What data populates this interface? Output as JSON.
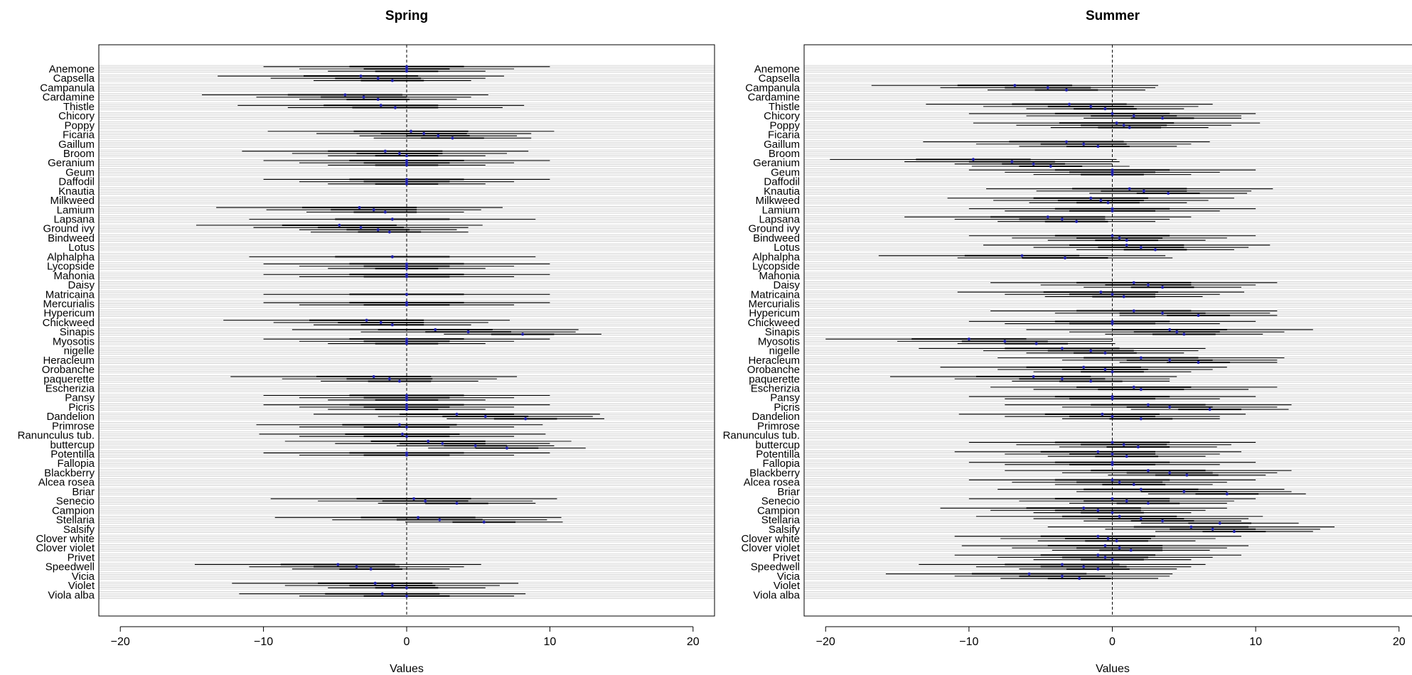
{
  "figure": {
    "xlabel": "Values"
  },
  "chart_data": [
    {
      "type": "forest",
      "title": "Spring",
      "xlabel": "Values",
      "xlim": [
        -21.5,
        21.5
      ],
      "xticks": [
        -20,
        -10,
        0,
        10,
        20
      ],
      "reference_line_x": 0,
      "categories": [
        "Anemone",
        "Capsella",
        "Campanula",
        "Cardamine",
        "Thistle",
        "Chicory",
        "Poppy",
        "Ficaria",
        "Gaillum",
        "Broom",
        "Geranium",
        "Geum",
        "Daffodil",
        "Knautia",
        "Milkweed",
        "Lamium",
        "Lapsana",
        "Ground ivy",
        "Bindweed",
        "Lotus",
        "Alphalpha",
        "Lycopside",
        "Mahonia",
        "Daisy",
        "Matricaina",
        "Mercurialis",
        "Hypericum",
        "Chickweed",
        "Sinapis",
        "Myosotis",
        "nigelle",
        "Heracleum",
        "Orobanche",
        "paquerette",
        "Escherizia",
        "Pansy",
        "Picris",
        "Dandelion",
        "Primrose",
        "Ranunculus tub.",
        "buttercup",
        "Potentilla",
        "Fallopia",
        "Blackberry",
        "Alcea rosea",
        "Briar",
        "Senecio",
        "Campion",
        "Stellaria",
        "Salsify",
        "Clover white",
        "Clover violet",
        "Privet",
        "Speedwell",
        "Vicia",
        "Violet",
        "Viola alba"
      ],
      "estimates": {
        "Anemone": [
          0.0,
          0.0,
          0.0
        ],
        "Capsella": [
          -3.2,
          -2.0,
          -1.0
        ],
        "Campanula": [],
        "Cardamine": [
          -4.3,
          -3.0,
          -2.0
        ],
        "Thistle": [
          -1.8,
          -0.8
        ],
        "Chicory": [],
        "Poppy": [],
        "Ficaria": [
          0.3,
          1.2,
          2.2,
          3.2
        ],
        "Gaillum": [],
        "Broom": [
          -1.5,
          -0.5,
          0.0
        ],
        "Geranium": [
          0.0,
          0.0,
          0.0
        ],
        "Geum": [],
        "Daffodil": [
          0.0,
          0.0,
          0.0
        ],
        "Knautia": [],
        "Milkweed": [],
        "Lamium": [
          -3.3,
          -2.3,
          -1.5
        ],
        "Lapsana": [
          -1.0
        ],
        "Ground ivy": [
          -4.7,
          -3.2,
          -2.0,
          -1.2
        ],
        "Bindweed": [],
        "Lotus": [],
        "Alphalpha": [
          -1.0
        ],
        "Lycopside": [
          0.0,
          0.0,
          0.0
        ],
        "Mahonia": [
          0.0,
          0.0
        ],
        "Daisy": [],
        "Matricaina": [
          0.0
        ],
        "Mercurialis": [
          0.0,
          0.0
        ],
        "Hypericum": [],
        "Chickweed": [
          -2.8,
          -1.8,
          -1.0
        ],
        "Sinapis": [
          2.0,
          4.3,
          8.1
        ],
        "Myosotis": [
          0.0,
          0.0,
          0.0
        ],
        "nigelle": [],
        "Heracleum": [],
        "Orobanche": [],
        "paquerette": [
          -2.3,
          -1.2,
          -0.5
        ],
        "Escherizia": [],
        "Pansy": [
          0.0,
          0.0,
          0.0
        ],
        "Picris": [
          0.0,
          0.0,
          0.0
        ],
        "Dandelion": [
          3.5,
          5.5,
          8.3
        ],
        "Primrose": [
          -0.5,
          0.0
        ],
        "Ranunculus tub.": [
          -0.3,
          0.0
        ],
        "buttercup": [
          1.5,
          2.5,
          4.8,
          7.0
        ],
        "Potentilla": [
          0.0,
          0.0
        ],
        "Fallopia": [],
        "Blackberry": [],
        "Alcea rosea": [],
        "Briar": [],
        "Senecio": [
          0.5,
          1.3,
          3.5
        ],
        "Campion": [],
        "Stellaria": [
          0.8,
          2.3,
          5.4
        ],
        "Salsify": [],
        "Clover white": [],
        "Clover violet": [],
        "Privet": [],
        "Speedwell": [
          -4.8,
          -3.5,
          -2.5
        ],
        "Vicia": [],
        "Violet": [
          -2.2,
          -1.0,
          0.0
        ],
        "Viola alba": [
          -1.7,
          0.0
        ]
      }
    },
    {
      "type": "forest",
      "title": "Summer",
      "xlabel": "Values",
      "xlim": [
        -21.5,
        21.5
      ],
      "xticks": [
        -20,
        -10,
        0,
        10,
        20
      ],
      "reference_line_x": 0,
      "categories": [
        "Anemone",
        "Capsella",
        "Campanula",
        "Cardamine",
        "Thistle",
        "Chicory",
        "Poppy",
        "Ficaria",
        "Gaillum",
        "Broom",
        "Geranium",
        "Geum",
        "Daffodil",
        "Knautia",
        "Milkweed",
        "Lamium",
        "Lapsana",
        "Ground ivy",
        "Bindweed",
        "Lotus",
        "Alphalpha",
        "Lycopside",
        "Mahonia",
        "Daisy",
        "Matricaina",
        "Mercurialis",
        "Hypericum",
        "Chickweed",
        "Sinapis",
        "Myosotis",
        "nigelle",
        "Heracleum",
        "Orobanche",
        "paquerette",
        "Escherizia",
        "Pansy",
        "Picris",
        "Dandelion",
        "Primrose",
        "Ranunculus tub.",
        "buttercup",
        "Potentilla",
        "Fallopia",
        "Blackberry",
        "Alcea rosea",
        "Briar",
        "Senecio",
        "Campion",
        "Stellaria",
        "Salsify",
        "Clover white",
        "Clover violet",
        "Privet",
        "Speedwell",
        "Vicia",
        "Violet",
        "Viola alba"
      ],
      "estimates": {
        "Anemone": [],
        "Capsella": [],
        "Campanula": [
          -6.8,
          -4.5,
          -3.2
        ],
        "Cardamine": [],
        "Thistle": [
          -3.0,
          -1.5,
          -0.5
        ],
        "Chicory": [
          0.0,
          1.5,
          3.5
        ],
        "Poppy": [
          0.3,
          0.8,
          1.2
        ],
        "Ficaria": [],
        "Gaillum": [
          -3.2,
          -2.0,
          -1.0
        ],
        "Broom": [],
        "Geranium": [
          -9.7,
          -7.0,
          -5.5,
          -4.3
        ],
        "Geum": [
          0.0,
          0.0,
          0.0
        ],
        "Daffodil": [],
        "Knautia": [
          1.2,
          2.2,
          3.9
        ],
        "Milkweed": [
          -1.5,
          -0.8,
          -0.3
        ],
        "Lamium": [
          0.0,
          0.0
        ],
        "Lapsana": [
          -4.5,
          -3.5,
          -2.5
        ],
        "Ground ivy": [],
        "Bindweed": [
          0.0,
          0.5,
          1.0
        ],
        "Lotus": [
          1.0,
          2.0,
          3.0
        ],
        "Alphalpha": [
          -6.3,
          -3.3
        ],
        "Lycopside": [],
        "Mahonia": [],
        "Daisy": [
          1.5,
          2.5,
          3.5
        ],
        "Matricaina": [
          -0.8,
          0.0,
          0.8
        ],
        "Mercurialis": [],
        "Hypericum": [
          1.5,
          3.5,
          6.0
        ],
        "Chickweed": [
          0.0,
          0.0
        ],
        "Sinapis": [
          4.0,
          4.5,
          5.0
        ],
        "Myosotis": [
          -10.0,
          -7.5,
          -5.3
        ],
        "nigelle": [
          -3.5,
          -1.5,
          -0.5
        ],
        "Heracleum": [
          2.0,
          4.0,
          6.0
        ],
        "Orobanche": [
          -2.0,
          -0.5,
          0.0
        ],
        "paquerette": [
          -5.5,
          -3.5,
          -1.5
        ],
        "Escherizia": [
          1.5,
          2.0
        ],
        "Pansy": [
          0.0,
          0.0
        ],
        "Picris": [
          2.5,
          4.0,
          6.8
        ],
        "Dandelion": [
          -0.7,
          0.0,
          2.0
        ],
        "Primrose": [],
        "Ranunculus tub.": [],
        "buttercup": [
          0.0,
          0.8,
          1.8
        ],
        "Potentilla": [
          -1.0,
          0.0,
          1.0
        ],
        "Fallopia": [
          0.0,
          0.0
        ],
        "Blackberry": [
          2.5,
          4.0,
          5.2
        ],
        "Alcea rosea": [
          0.0,
          0.5,
          1.5
        ],
        "Briar": [
          2.0,
          5.0,
          8.0
        ],
        "Senecio": [
          0.0,
          1.0,
          2.5
        ],
        "Campion": [
          -2.0,
          -1.0,
          0.0
        ],
        "Stellaria": [
          0.5,
          2.0,
          3.5,
          7.5
        ],
        "Salsify": [
          5.5,
          7.0,
          8.5
        ],
        "Clover white": [
          -1.0,
          -0.3,
          0.3
        ],
        "Clover violet": [
          -0.5,
          0.5,
          1.3
        ],
        "Privet": [
          -1.0,
          -0.5,
          0.0
        ],
        "Speedwell": [
          -3.5,
          -2.0,
          -1.0
        ],
        "Vicia": [
          -5.8,
          -3.5,
          -2.3
        ],
        "Violet": [],
        "Viola alba": []
      }
    }
  ]
}
